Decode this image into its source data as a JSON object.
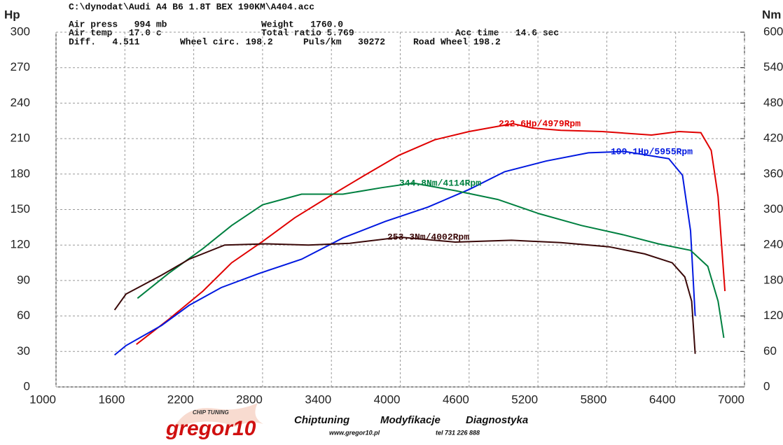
{
  "chart_data": {
    "type": "line",
    "title": "C:\\dynodat\\Audi A4 B6 1.8T BEX 190KM\\A404.acc",
    "header": [
      "Air press   994 mb",
      "Weight   1760.0",
      "Air temp   17.0 c",
      "Total ratio 5.769",
      "Acc time   14.6 sec",
      "Diff.   4.511",
      "Wheel circ. 198.2",
      "Puls/km   30272",
      "Road Wheel 198.2"
    ],
    "ylabel": "Hp",
    "y2label": "Nm",
    "xlim": [
      1000,
      7000
    ],
    "xticks": [
      1000,
      1600,
      2200,
      2800,
      3400,
      4000,
      4600,
      5200,
      5800,
      6400,
      7000
    ],
    "ylim": [
      0,
      300
    ],
    "yticks": [
      0,
      30,
      60,
      90,
      120,
      150,
      180,
      210,
      240,
      270,
      300
    ],
    "y2lim": [
      0,
      600
    ],
    "y2ticks": [
      0,
      60,
      120,
      180,
      240,
      300,
      360,
      420,
      480,
      540,
      600
    ],
    "grid": true,
    "series": [
      {
        "color": "#e00000",
        "axis": "y",
        "x": [
          1700,
          1980,
          2280,
          2530,
          2800,
          3080,
          3380,
          3690,
          3990,
          4300,
          4600,
          4979,
          5150,
          5400,
          5760,
          6190,
          6430,
          6620,
          6710,
          6770,
          6830
        ],
        "values": [
          36,
          57,
          81,
          105,
          123,
          143,
          161,
          179,
          196,
          209,
          216,
          222.6,
          219,
          217,
          216,
          213,
          216,
          215,
          200,
          161,
          81
        ]
      },
      {
        "color": "#0018e0",
        "axis": "y",
        "x": [
          1510,
          1610,
          1920,
          2160,
          2440,
          2770,
          3140,
          3500,
          3870,
          4240,
          4600,
          4910,
          5270,
          5640,
          5955,
          6340,
          6460,
          6530,
          6570
        ],
        "values": [
          27,
          35,
          52,
          69,
          84,
          96,
          108,
          126,
          140,
          152,
          167,
          182,
          191,
          198,
          199.1,
          193,
          179,
          132,
          60
        ]
      },
      {
        "color": "#008040",
        "axis": "y2",
        "x": [
          1710,
          1980,
          2280,
          2530,
          2800,
          3140,
          3500,
          3840,
          4114,
          4480,
          4850,
          5210,
          5580,
          5950,
          6250,
          6530,
          6680,
          6770,
          6820
        ],
        "values": [
          150,
          192,
          234,
          273,
          308,
          326,
          326,
          337,
          344.8,
          332,
          317,
          293,
          273,
          257,
          242,
          231,
          204,
          145,
          83
        ]
      },
      {
        "color": "#3a0808",
        "axis": "y2",
        "x": [
          1510,
          1610,
          1920,
          2160,
          2470,
          2830,
          3200,
          3560,
          4002,
          4480,
          4970,
          5400,
          5820,
          6130,
          6370,
          6480,
          6540,
          6570
        ],
        "values": [
          130,
          157,
          189,
          216,
          240,
          242,
          240,
          243,
          253.3,
          245,
          248,
          244,
          237,
          225,
          210,
          186,
          145,
          56
        ]
      }
    ],
    "annotations": [
      "222.6Hp/4979Rpm",
      "199.1Hp/5955Rpm",
      "344.8Nm/4114Rpm",
      "253.3Nm/4002Rpm"
    ],
    "footer": [
      "Chiptuning",
      "Modyfikacje",
      "Diagnostyka",
      "www.gregor10.pl",
      "tel 731 226 888"
    ],
    "logo": {
      "small": "CHIP TUNING",
      "name": "gregor10"
    }
  }
}
